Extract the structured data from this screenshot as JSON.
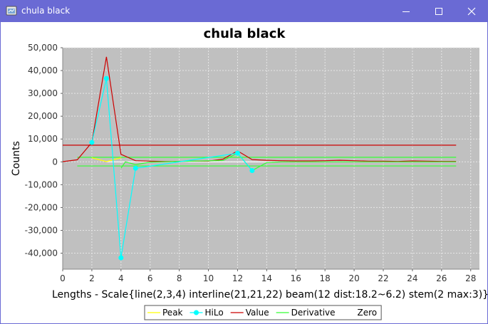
{
  "window": {
    "title": "chula black",
    "icons": {
      "app": "java-app-icon",
      "minimize": "minimize-icon",
      "maximize": "maximize-icon",
      "close": "close-icon"
    }
  },
  "chart_data": {
    "type": "line",
    "title": "chula black",
    "xlabel": "Lengths - Scale{line(2,3,4) interline(21,21,22) beam(12 dist:18.2~6.2) stem(2 max:3)}",
    "ylabel": "Counts",
    "xlim": [
      0,
      28.6
    ],
    "ylim": [
      -47000,
      50000
    ],
    "xticks": [
      "0",
      "2",
      "4",
      "6",
      "8",
      "10",
      "12",
      "14",
      "16",
      "18",
      "20",
      "22",
      "24",
      "26",
      "28"
    ],
    "yticks": [
      "50,000",
      "40,000",
      "30,000",
      "20,000",
      "10,000",
      "0",
      "-10,000",
      "-20,000",
      "-30,000",
      "-40,000"
    ],
    "grid": true,
    "legend": "bottom",
    "colors": {
      "plot_bg": "#c0c0c0",
      "grid": "#e6e6e6",
      "peak": "#ffff00",
      "hilo": "#00ffff",
      "value": "#cc0000",
      "derivative": "#33ff33",
      "zero": "#ffffff"
    },
    "series": [
      {
        "name": "Peak",
        "points": [
          [
            2,
            1800
          ],
          [
            3,
            100
          ],
          [
            4,
            1800
          ]
        ]
      },
      {
        "name": "HiLo",
        "markers": true,
        "points": [
          [
            2,
            8500
          ],
          [
            3,
            36500
          ],
          [
            4,
            -42000
          ],
          [
            5,
            -2800
          ],
          [
            12,
            3800
          ],
          [
            13,
            -3800
          ]
        ]
      },
      {
        "name": "Value",
        "points": [
          [
            0,
            100
          ],
          [
            1,
            900
          ],
          [
            2,
            8500
          ],
          [
            3,
            46000
          ],
          [
            4,
            3300
          ],
          [
            5,
            500
          ],
          [
            6,
            300
          ],
          [
            7,
            200
          ],
          [
            8,
            200
          ],
          [
            9,
            300
          ],
          [
            10,
            300
          ],
          [
            11,
            1200
          ],
          [
            12,
            4800
          ],
          [
            13,
            1000
          ],
          [
            14,
            700
          ],
          [
            15,
            500
          ],
          [
            16,
            400
          ],
          [
            17,
            400
          ],
          [
            18,
            500
          ],
          [
            19,
            700
          ],
          [
            20,
            500
          ],
          [
            21,
            300
          ],
          [
            22,
            300
          ],
          [
            23,
            200
          ],
          [
            24,
            400
          ],
          [
            25,
            300
          ],
          [
            26,
            200
          ],
          [
            27,
            200
          ]
        ]
      },
      {
        "name": "Derivative",
        "points": [
          [
            4,
            -2800
          ],
          [
            4.3,
            0
          ],
          [
            5,
            -1200
          ],
          [
            6,
            -100
          ],
          [
            11,
            600
          ],
          [
            12,
            3800
          ],
          [
            13,
            -3800
          ],
          [
            14,
            -300
          ],
          [
            15,
            0
          ],
          [
            27,
            0
          ]
        ]
      },
      {
        "name": "Zero",
        "points": []
      }
    ],
    "hlines": [
      {
        "series": "Value",
        "y": 7300,
        "from": 0,
        "to": 27
      },
      {
        "series": "Derivative",
        "y": 2000,
        "from": 1,
        "to": 27
      },
      {
        "series": "Derivative",
        "y": -1800,
        "from": 1,
        "to": 27
      },
      {
        "series": "Zero",
        "y": 0,
        "from": 3,
        "to": 27
      }
    ]
  }
}
